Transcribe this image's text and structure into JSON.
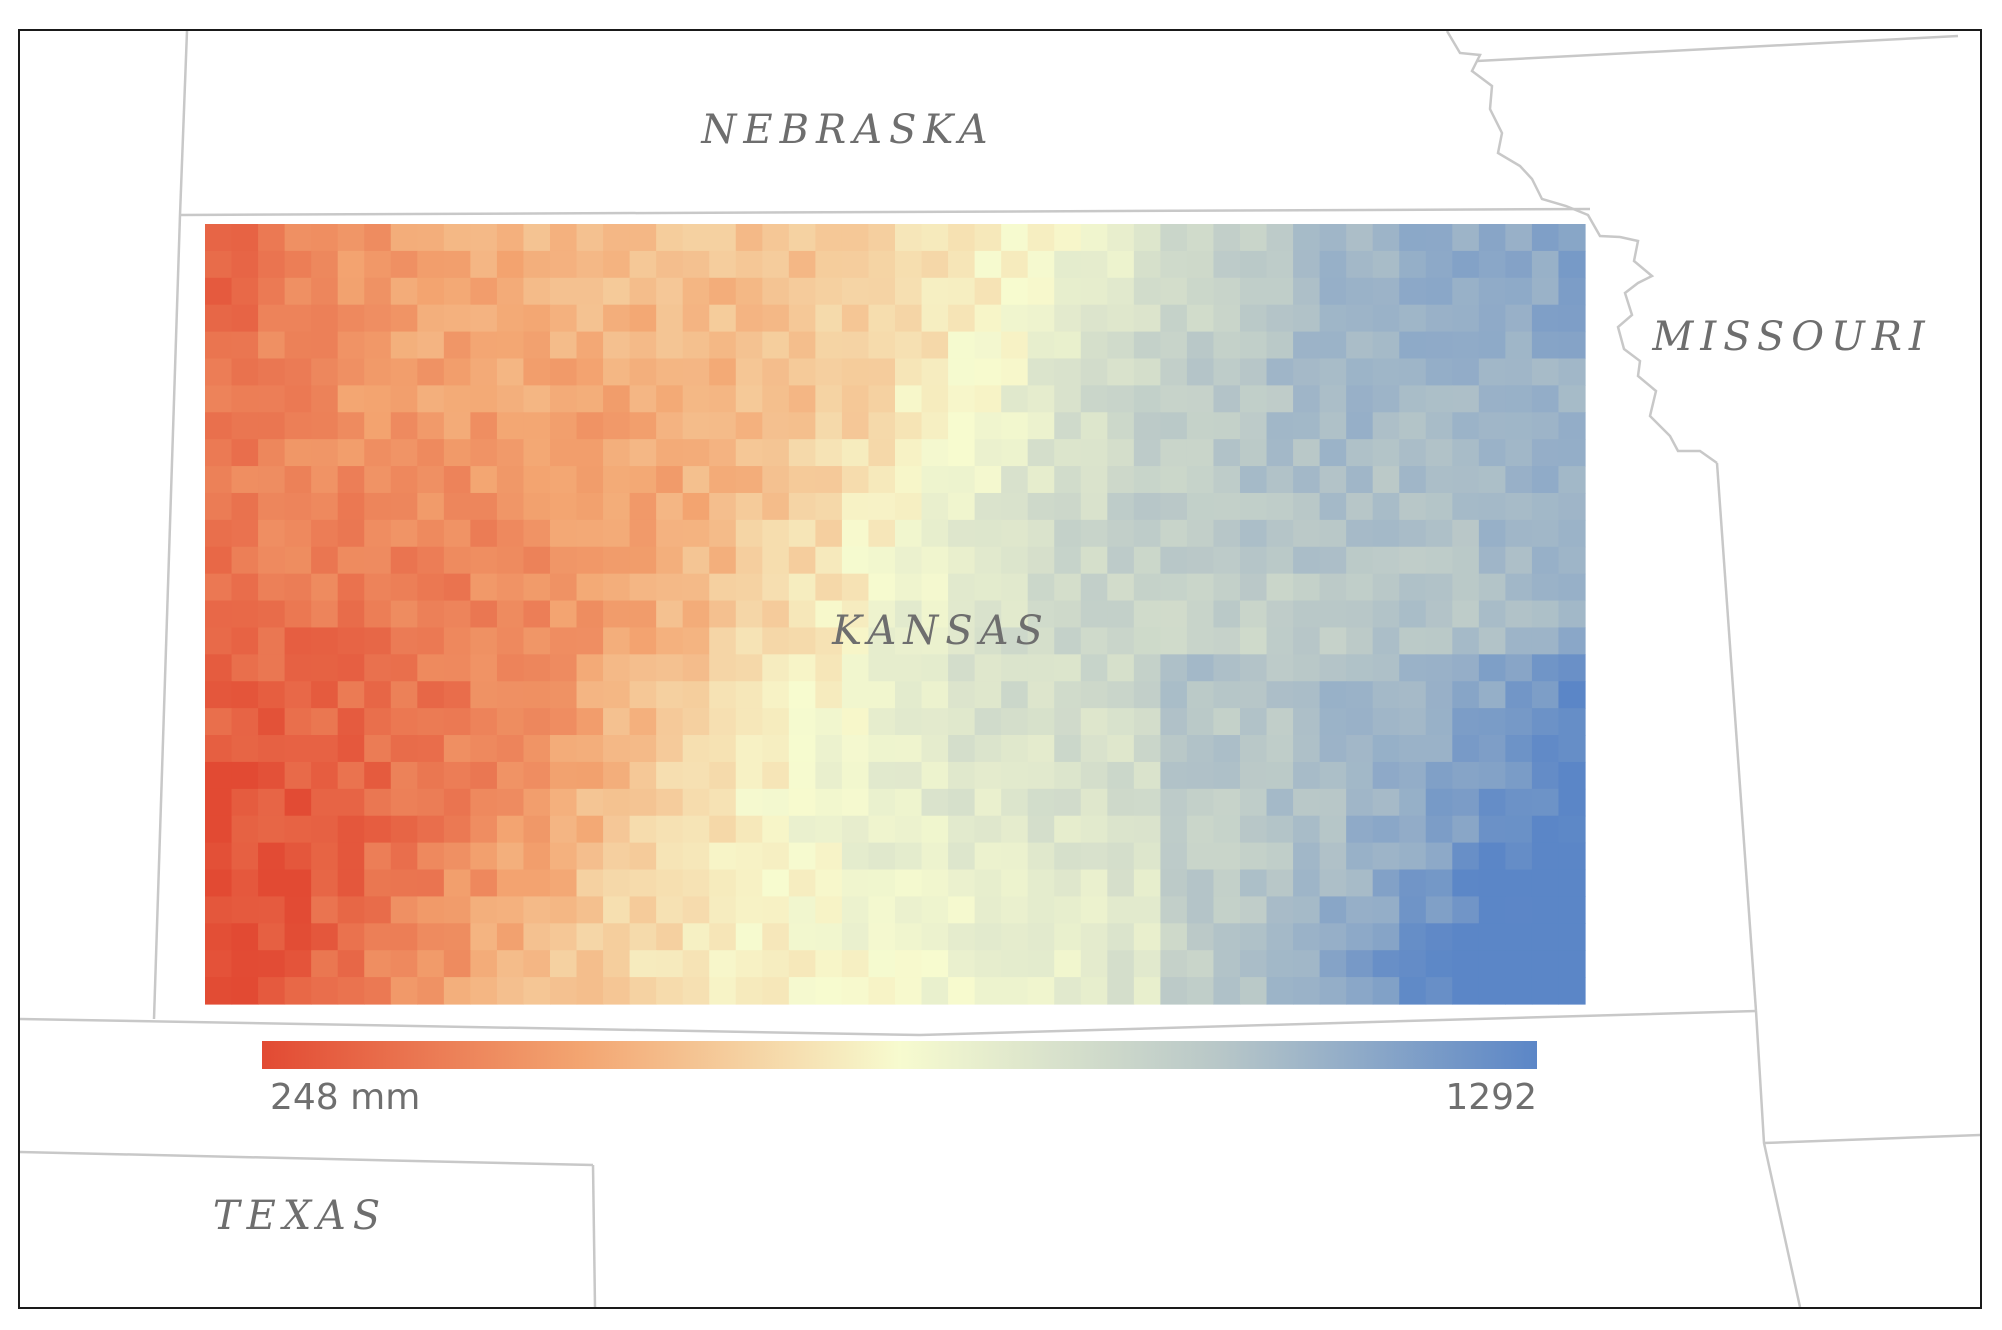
{
  "map": {
    "states": {
      "nebraska": "NEBRASKA",
      "kansas": "KANSAS",
      "missouri": "MISSOURI",
      "texas": "TEXAS"
    },
    "legend": {
      "min_label": "248 mm",
      "max_label": "1292",
      "min_value": 248,
      "max_value": 1292,
      "colors": [
        "#e24a33",
        "#f3a571",
        "#f7fbcf",
        "#b8c7c8",
        "#5b86c7"
      ]
    },
    "grid": {
      "columns": 52,
      "rows": 29
    },
    "border_color": "#c8c8c8"
  }
}
